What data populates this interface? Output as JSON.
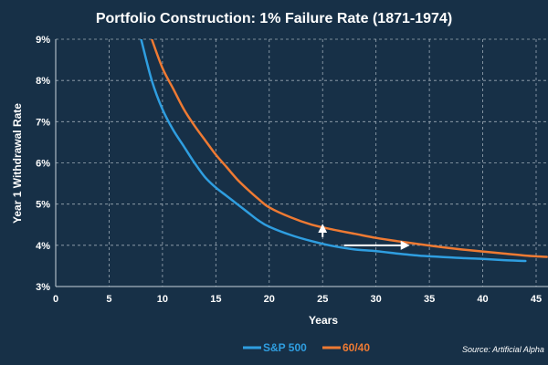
{
  "colors": {
    "background": "#173047",
    "grid": "#c9d3dc",
    "sp500": "#2f9ee0",
    "sixty_forty": "#ee7a33",
    "text": "#ffffff",
    "arrow": "#ffffff"
  },
  "chart_data": {
    "type": "line",
    "title": "Portfolio Construction: 1% Failure Rate (1871-1974)",
    "xlabel": "Years",
    "ylabel": "Year 1 Withdrawal Rate",
    "xlim": [
      0,
      45
    ],
    "ylim": [
      3,
      9
    ],
    "x_ticks": [
      0,
      5,
      10,
      15,
      20,
      25,
      30,
      35,
      40,
      45
    ],
    "x_tick_labels": [
      "0",
      "5",
      "10",
      "15",
      "20",
      "25",
      "30",
      "35",
      "40",
      "45"
    ],
    "y_ticks": [
      3,
      4,
      5,
      6,
      7,
      8,
      9
    ],
    "y_tick_labels": [
      "3%",
      "4%",
      "5%",
      "6%",
      "7%",
      "8%",
      "9%"
    ],
    "grid": true,
    "legend_position": "bottom",
    "source": "Source: Artificial Alpha",
    "series": [
      {
        "name": "S&P 500",
        "x": [
          8,
          9,
          10,
          11,
          12,
          13,
          14,
          15,
          16,
          17,
          18,
          19,
          20,
          22,
          24,
          26,
          28,
          30,
          32,
          34,
          36,
          38,
          40,
          42,
          44
        ],
        "values": [
          9.0,
          8.0,
          7.3,
          6.8,
          6.4,
          6.0,
          5.65,
          5.4,
          5.2,
          5.0,
          4.8,
          4.6,
          4.45,
          4.25,
          4.1,
          3.98,
          3.9,
          3.86,
          3.8,
          3.75,
          3.72,
          3.69,
          3.67,
          3.64,
          3.62
        ]
      },
      {
        "name": "60/40",
        "x": [
          9,
          10,
          11,
          12,
          13,
          14,
          15,
          16,
          17,
          18,
          19,
          20,
          22,
          24,
          26,
          28,
          30,
          32,
          34,
          36,
          38,
          40,
          42,
          44,
          46
        ],
        "values": [
          9.0,
          8.3,
          7.8,
          7.3,
          6.9,
          6.55,
          6.2,
          5.9,
          5.6,
          5.35,
          5.12,
          4.92,
          4.68,
          4.5,
          4.38,
          4.28,
          4.18,
          4.1,
          4.03,
          3.96,
          3.9,
          3.85,
          3.8,
          3.75,
          3.72
        ]
      }
    ],
    "annotations": [
      {
        "type": "arrow",
        "direction": "up",
        "from": [
          25,
          4.2
        ],
        "to": [
          25,
          4.48
        ]
      },
      {
        "type": "arrow",
        "direction": "right",
        "from": [
          27,
          4.0
        ],
        "to": [
          33,
          4.0
        ]
      }
    ]
  }
}
